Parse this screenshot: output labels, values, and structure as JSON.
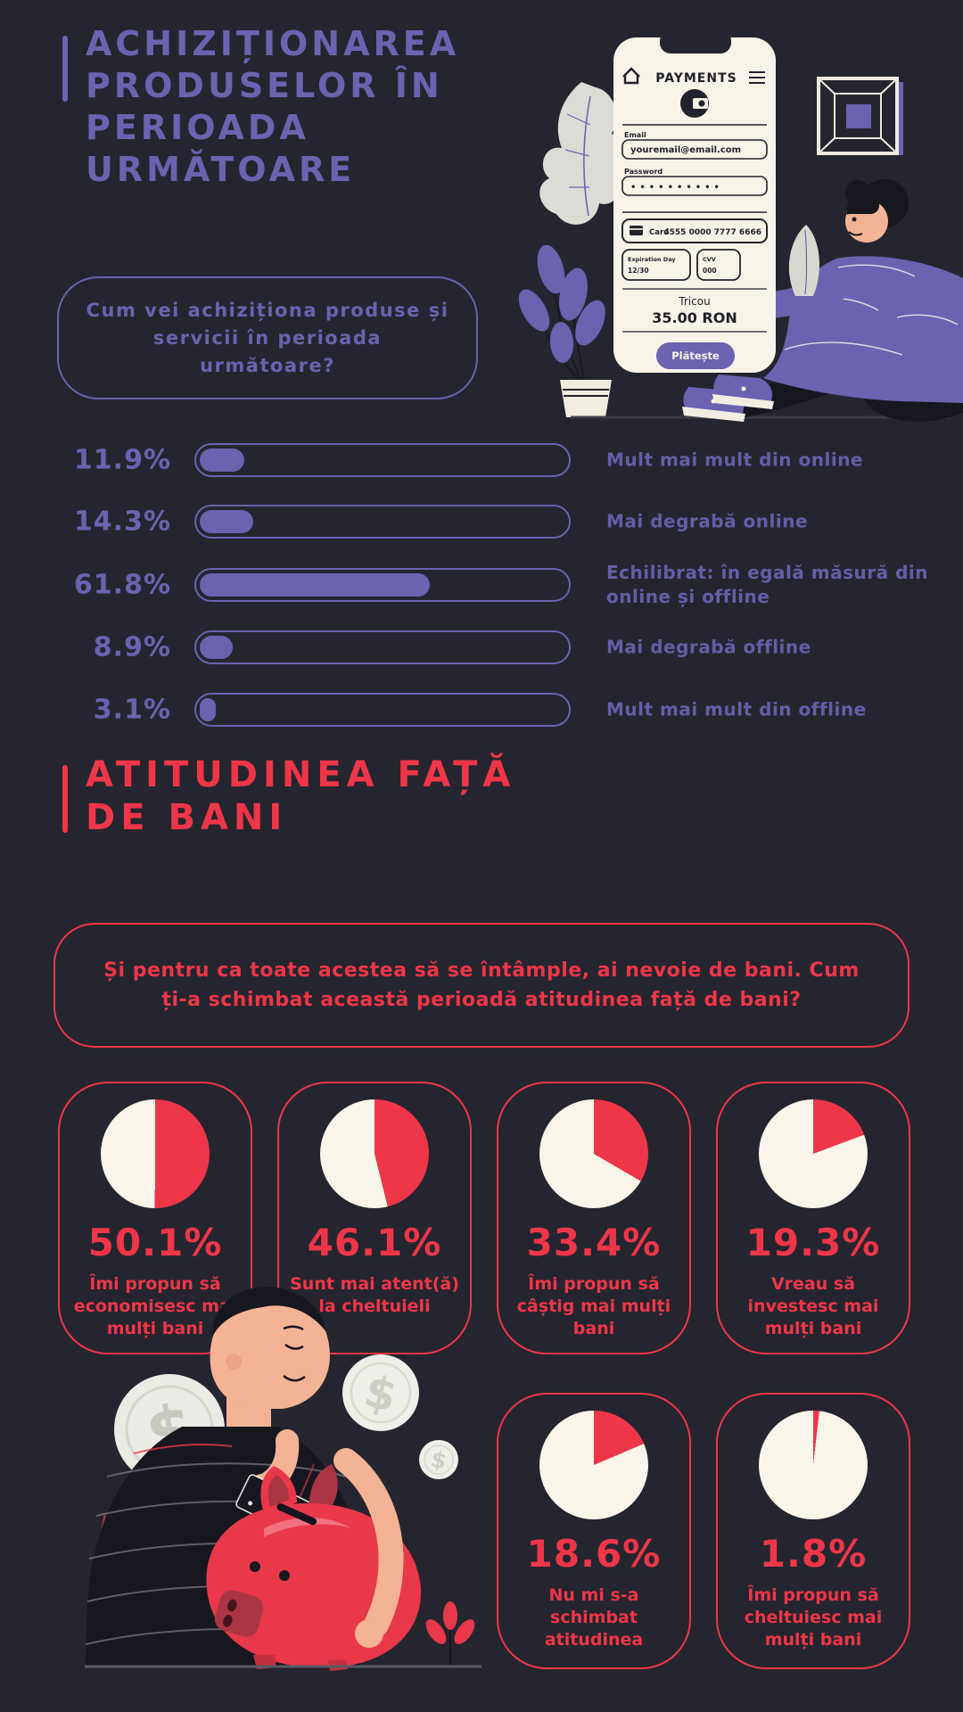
{
  "colors": {
    "bg": "#25252f",
    "purple": "#6b62b0",
    "red": "#ee3648",
    "cream": "#faf5ea"
  },
  "header": {
    "title": "ACHIZIȚIONAREA PRODUSELOR ÎN PERIOADA URMĂTOARE"
  },
  "question1": "Cum vei achiziționa produse și servicii în perioada următoare?",
  "section2": {
    "title": "ATITUDINEA FAȚĂ DE BANI",
    "question": "Și pentru ca toate acestea să se întâmple, ai nevoie de bani. Cum ți-a schimbat această perioadă atitudinea față de bani?"
  },
  "phone": {
    "header": "PAYMENTS",
    "email_label": "Email",
    "email_value": "youremail@email.com",
    "password_label": "Password",
    "password_value": "••••••••••",
    "card_label": "Card",
    "card_number": "4555 0000 7777 6666",
    "exp_label": "Expiration Day",
    "exp_value": "12/30",
    "cvv_label": "CVV",
    "cvv_value": "000",
    "product": "Tricou",
    "price": "35.00 RON",
    "pay_button": "Plătește"
  },
  "illustration": {
    "dollar": "$"
  },
  "chart_data": [
    {
      "type": "bar",
      "title": "Cum vei achiziționa produse și servicii în perioada următoare?",
      "orientation": "horizontal",
      "unit": "%",
      "xlim": [
        0,
        100
      ],
      "grid": false,
      "categories": [
        "Mult mai mult din online",
        "Mai degrabă online",
        "Echilibrat: în egală măsură din online și offline",
        "Mai degrabă offline",
        "Mult mai mult din offline"
      ],
      "values": [
        11.9,
        14.3,
        61.8,
        8.9,
        3.1
      ],
      "rows": [
        {
          "pct": "11.9%",
          "value": 11.9,
          "label": "Mult mai mult din online"
        },
        {
          "pct": "14.3%",
          "value": 14.3,
          "label": "Mai degrabă online"
        },
        {
          "pct": "61.8%",
          "value": 61.8,
          "label": "Echilibrat: în egală măsură din online și offline"
        },
        {
          "pct": "8.9%",
          "value": 8.9,
          "label": "Mai degrabă offline"
        },
        {
          "pct": "3.1%",
          "value": 3.1,
          "label": "Mult mai mult din offline"
        }
      ]
    },
    {
      "type": "pie",
      "title": "Și pentru ca toate acestea să se întâmple, ai nevoie de bani. Cum ți-a schimbat această perioadă atitudinea față de bani?",
      "unit": "%",
      "pies": [
        {
          "pct": "50.1%",
          "value": 50.1,
          "label": "Îmi propun să economisesc mai mulți bani"
        },
        {
          "pct": "46.1%",
          "value": 46.1,
          "label": "Sunt mai atent(ă) la cheltuieli"
        },
        {
          "pct": "33.4%",
          "value": 33.4,
          "label": "Îmi propun să câștig mai mulți bani"
        },
        {
          "pct": "19.3%",
          "value": 19.3,
          "label": "Vreau să investesc mai mulți bani"
        },
        {
          "pct": "18.6%",
          "value": 18.6,
          "label": "Nu mi s-a schimbat atitudinea"
        },
        {
          "pct": "1.8%",
          "value": 1.8,
          "label": "Îmi propun să cheltuiesc mai mulți bani"
        }
      ]
    }
  ]
}
